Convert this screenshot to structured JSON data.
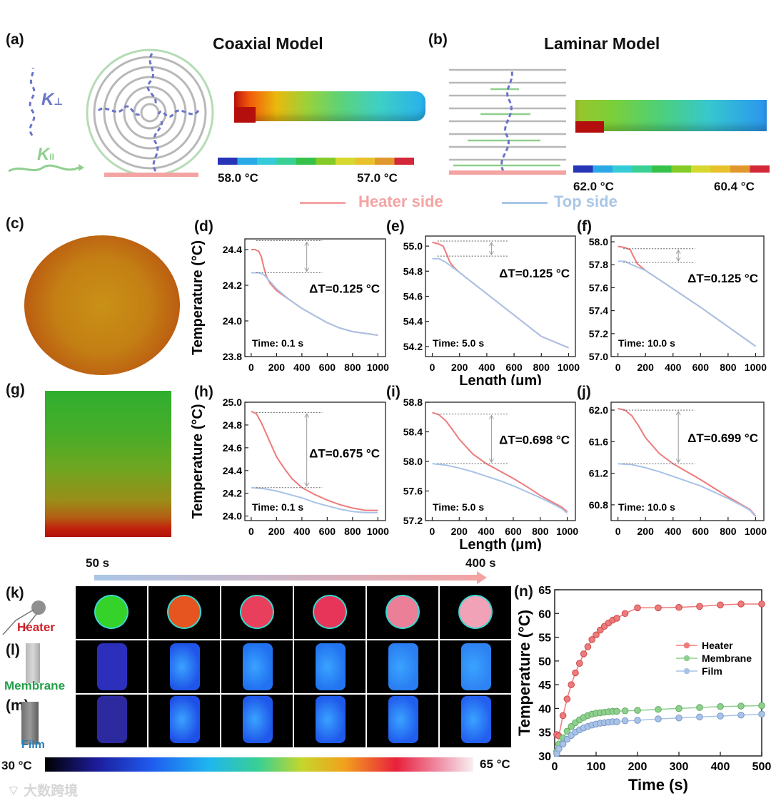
{
  "colors": {
    "heater": "#ee7b7b",
    "membrane": "#8fcf8f",
    "film": "#a9c3e8",
    "hs_legend": "#f4a3a3",
    "ts_legend": "#a9c6e6",
    "heater_label": "#d0202a",
    "membrane_label": "#22a04a",
    "film_label": "#2c7fb8"
  },
  "panels": {
    "a": {
      "label": "(a)",
      "title": "Coaxial Model",
      "k_perp": "K",
      "k_perp_sub": "⊥",
      "k_par": "K",
      "k_par_sub": "II",
      "cb_min": "58.0 °C",
      "cb_max": "57.0 °C"
    },
    "b": {
      "label": "(b)",
      "title": "Laminar Model",
      "cb_min": "62.0 °C",
      "cb_max": "60.4 °C"
    },
    "c": {
      "label": "(c)"
    },
    "g": {
      "label": "(g)"
    },
    "k": {
      "label": "(k)",
      "name": "Heater"
    },
    "l": {
      "label": "(l)",
      "name": "Membrane"
    },
    "m": {
      "label": "(m)",
      "name": "Film"
    },
    "n": {
      "label": "(n)"
    }
  },
  "legend_top": {
    "heater": "Heater side",
    "top": "Top side"
  },
  "thermal": {
    "start": "50 s",
    "end": "400 s",
    "cb_min": "30 °C",
    "cb_max": "65 °C"
  },
  "watermark": "大数跨境",
  "chart_data": [
    {
      "id": "d",
      "label": "(d)",
      "type": "line",
      "xlim": [
        -50,
        1060
      ],
      "ylim": [
        23.8,
        24.46
      ],
      "yticks": [
        23.8,
        24.0,
        24.2,
        24.4
      ],
      "ytick_labels": [
        "23.8",
        "24.0",
        "24.2",
        "24.4"
      ],
      "xticks": [
        0,
        200,
        400,
        600,
        800,
        1000
      ],
      "xtick_labels": [
        "0",
        "200",
        "400",
        "600",
        "800",
        "1000"
      ],
      "ylabel": "Temperature (°C)",
      "xlabel": "",
      "time": "Time: 0.1 s",
      "dt": "ΔT=0.125 °C",
      "dt_top": 24.45,
      "dt_bottom": 24.27,
      "series": [
        {
          "name": "Heater side",
          "x": [
            0,
            30,
            60,
            80,
            100,
            120,
            150,
            200,
            300,
            400,
            500,
            600,
            700,
            800,
            900,
            1000
          ],
          "y": [
            24.4,
            24.4,
            24.39,
            24.36,
            24.3,
            24.25,
            24.21,
            24.17,
            24.12,
            24.07,
            24.03,
            23.99,
            23.96,
            23.94,
            23.93,
            23.92
          ]
        },
        {
          "name": "Top side",
          "x": [
            0,
            30,
            60,
            100,
            150,
            200,
            300,
            400,
            500,
            600,
            700,
            800,
            900,
            1000
          ],
          "y": [
            24.27,
            24.27,
            24.27,
            24.26,
            24.22,
            24.18,
            24.12,
            24.07,
            24.03,
            23.99,
            23.96,
            23.94,
            23.93,
            23.92
          ]
        }
      ]
    },
    {
      "id": "e",
      "label": "(e)",
      "type": "line",
      "xlim": [
        -50,
        1050
      ],
      "ylim": [
        54.12,
        55.08
      ],
      "yticks": [
        54.2,
        54.4,
        54.6,
        54.8,
        55.0
      ],
      "ytick_labels": [
        "54.2",
        "54.4",
        "54.6",
        "54.8",
        "55.0"
      ],
      "xticks": [
        0,
        200,
        400,
        600,
        800,
        1000
      ],
      "xtick_labels": [
        "0",
        "200",
        "400",
        "600",
        "800",
        "1000"
      ],
      "ylabel": "",
      "xlabel": "Length (μm)",
      "time": "Time: 5.0 s",
      "dt": "ΔT=0.125 °C",
      "dt_top": 55.04,
      "dt_bottom": 54.92,
      "series": [
        {
          "name": "Heater side",
          "x": [
            0,
            40,
            80,
            100,
            130,
            160,
            200,
            400,
            600,
            800,
            1000
          ],
          "y": [
            55.03,
            55.02,
            55.0,
            54.95,
            54.87,
            54.83,
            54.79,
            54.62,
            54.45,
            54.28,
            54.19
          ]
        },
        {
          "name": "Top side",
          "x": [
            0,
            50,
            100,
            200,
            400,
            600,
            800,
            1000
          ],
          "y": [
            54.9,
            54.9,
            54.87,
            54.79,
            54.62,
            54.45,
            54.28,
            54.19
          ]
        }
      ]
    },
    {
      "id": "f",
      "label": "(f)",
      "type": "line",
      "xlim": [
        -50,
        1060
      ],
      "ylim": [
        57.0,
        58.05
      ],
      "yticks": [
        57.0,
        57.2,
        57.4,
        57.6,
        57.8,
        58.0
      ],
      "ytick_labels": [
        "57.0",
        "57.2",
        "57.4",
        "57.6",
        "57.8",
        "58.0"
      ],
      "xticks": [
        0,
        200,
        400,
        600,
        800,
        1000
      ],
      "xtick_labels": [
        "0",
        "200",
        "400",
        "600",
        "800",
        "1000"
      ],
      "ylabel": "",
      "xlabel": "",
      "time": "Time: 10.0 s",
      "dt": "ΔT=0.125 °C",
      "dt_top": 57.94,
      "dt_bottom": 57.82,
      "series": [
        {
          "name": "Heater side",
          "x": [
            0,
            50,
            90,
            110,
            140,
            170,
            200,
            400,
            600,
            800,
            1000
          ],
          "y": [
            57.96,
            57.95,
            57.93,
            57.88,
            57.81,
            57.78,
            57.75,
            57.59,
            57.43,
            57.26,
            57.09
          ]
        },
        {
          "name": "Top side",
          "x": [
            0,
            50,
            100,
            200,
            400,
            600,
            800,
            1000
          ],
          "y": [
            57.83,
            57.83,
            57.8,
            57.75,
            57.59,
            57.43,
            57.26,
            57.09
          ]
        }
      ]
    },
    {
      "id": "h",
      "label": "(h)",
      "type": "line",
      "xlim": [
        -50,
        1060
      ],
      "ylim": [
        23.96,
        25.0
      ],
      "yticks": [
        24.0,
        24.2,
        24.4,
        24.6,
        24.8,
        25.0
      ],
      "ytick_labels": [
        "24.0",
        "24.2",
        "24.4",
        "24.6",
        "24.8",
        "25.0"
      ],
      "xticks": [
        0,
        200,
        400,
        600,
        800,
        1000
      ],
      "xtick_labels": [
        "0",
        "200",
        "400",
        "600",
        "800",
        "1000"
      ],
      "ylabel": "Temperature (°C)",
      "xlabel": "",
      "time": "Time: 0.1 s",
      "dt": "ΔT=0.675 °C",
      "dt_top": 24.91,
      "dt_bottom": 24.25,
      "series": [
        {
          "name": "Heater side",
          "x": [
            0,
            40,
            80,
            120,
            160,
            200,
            260,
            320,
            400,
            500,
            600,
            700,
            800,
            900,
            1000
          ],
          "y": [
            24.92,
            24.9,
            24.82,
            24.72,
            24.62,
            24.52,
            24.42,
            24.33,
            24.25,
            24.19,
            24.14,
            24.1,
            24.07,
            24.05,
            24.05
          ]
        },
        {
          "name": "Top side",
          "x": [
            0,
            100,
            200,
            300,
            400,
            500,
            600,
            700,
            800,
            900,
            1000
          ],
          "y": [
            24.25,
            24.24,
            24.22,
            24.19,
            24.16,
            24.12,
            24.09,
            24.06,
            24.04,
            24.03,
            24.03
          ]
        }
      ]
    },
    {
      "id": "i",
      "label": "(i)",
      "type": "line",
      "xlim": [
        -50,
        1060
      ],
      "ylim": [
        57.2,
        58.8
      ],
      "yticks": [
        57.2,
        57.6,
        58.0,
        58.4,
        58.8
      ],
      "ytick_labels": [
        "57.2",
        "57.6",
        "58.0",
        "58.4",
        "58.8"
      ],
      "xticks": [
        0,
        200,
        400,
        600,
        800,
        1000
      ],
      "xtick_labels": [
        "0",
        "200",
        "400",
        "600",
        "800",
        "1000"
      ],
      "ylabel": "",
      "xlabel": "Length (μm)",
      "time": "Time: 5.0 s",
      "dt": "ΔT=0.698 °C",
      "dt_top": 58.64,
      "dt_bottom": 57.97,
      "series": [
        {
          "name": "Heater side",
          "x": [
            0,
            50,
            100,
            150,
            200,
            300,
            400,
            500,
            600,
            700,
            800,
            900,
            960,
            1000
          ],
          "y": [
            58.66,
            58.63,
            58.55,
            58.43,
            58.3,
            58.1,
            57.97,
            57.87,
            57.77,
            57.66,
            57.54,
            57.44,
            57.38,
            57.32
          ]
        },
        {
          "name": "Top side",
          "x": [
            0,
            100,
            200,
            300,
            400,
            500,
            600,
            700,
            800,
            900,
            960,
            1000
          ],
          "y": [
            57.97,
            57.95,
            57.91,
            57.86,
            57.8,
            57.74,
            57.67,
            57.59,
            57.51,
            57.42,
            57.36,
            57.3
          ]
        }
      ]
    },
    {
      "id": "j",
      "label": "(j)",
      "type": "line",
      "xlim": [
        -50,
        1060
      ],
      "ylim": [
        60.6,
        62.1
      ],
      "yticks": [
        60.8,
        61.2,
        61.6,
        62.0
      ],
      "ytick_labels": [
        "60.8",
        "61.2",
        "61.6",
        "62.0"
      ],
      "xticks": [
        0,
        200,
        400,
        600,
        800,
        1000
      ],
      "xtick_labels": [
        "0",
        "200",
        "400",
        "600",
        "800",
        "1000"
      ],
      "ylabel": "",
      "xlabel": "",
      "time": "Time: 10.0 s",
      "dt": "ΔT=0.699 °C",
      "dt_top": 62.0,
      "dt_bottom": 61.32,
      "series": [
        {
          "name": "Heater side",
          "x": [
            0,
            50,
            100,
            150,
            200,
            300,
            400,
            500,
            600,
            700,
            800,
            900,
            960,
            1000
          ],
          "y": [
            62.02,
            62.0,
            61.93,
            61.8,
            61.65,
            61.45,
            61.32,
            61.22,
            61.12,
            61.01,
            60.9,
            60.8,
            60.74,
            60.66
          ]
        },
        {
          "name": "Top side",
          "x": [
            0,
            100,
            200,
            300,
            400,
            500,
            600,
            700,
            800,
            900,
            960,
            1000
          ],
          "y": [
            61.32,
            61.31,
            61.27,
            61.22,
            61.16,
            61.1,
            61.04,
            60.96,
            60.88,
            60.79,
            60.73,
            60.65
          ]
        }
      ]
    },
    {
      "id": "n",
      "label": "(n)",
      "type": "scatter-line",
      "xlim": [
        0,
        500
      ],
      "ylim": [
        30,
        65
      ],
      "yticks": [
        30,
        35,
        40,
        45,
        50,
        55,
        60,
        65
      ],
      "ytick_labels": [
        "30",
        "35",
        "40",
        "45",
        "50",
        "55",
        "60",
        "65"
      ],
      "xticks": [
        0,
        100,
        200,
        300,
        400,
        500
      ],
      "xtick_labels": [
        "0",
        "100",
        "200",
        "300",
        "400",
        "500"
      ],
      "ylabel": "Temperature (°C)",
      "xlabel": "Time (s)",
      "series": [
        {
          "name": "Heater",
          "x": [
            5,
            10,
            20,
            30,
            40,
            50,
            60,
            70,
            80,
            90,
            100,
            110,
            120,
            130,
            140,
            150,
            170,
            200,
            250,
            300,
            350,
            400,
            450,
            500
          ],
          "y": [
            34.5,
            34.2,
            38.5,
            42.0,
            45.0,
            47.5,
            49.5,
            51.5,
            53.0,
            54.5,
            55.5,
            56.5,
            57.3,
            58.0,
            58.6,
            59.0,
            60.0,
            61.2,
            61.2,
            61.3,
            61.5,
            61.8,
            62.0,
            62.0
          ]
        },
        {
          "name": "Membrane",
          "x": [
            5,
            10,
            20,
            30,
            40,
            50,
            60,
            70,
            80,
            90,
            100,
            110,
            120,
            130,
            140,
            150,
            170,
            200,
            250,
            300,
            350,
            400,
            450,
            500
          ],
          "y": [
            31.0,
            32.5,
            33.8,
            35.2,
            36.2,
            37.0,
            37.6,
            38.1,
            38.5,
            38.8,
            39.0,
            39.1,
            39.2,
            39.3,
            39.4,
            39.4,
            39.5,
            39.6,
            39.8,
            40.0,
            40.2,
            40.4,
            40.5,
            40.6
          ]
        },
        {
          "name": "Film",
          "x": [
            5,
            10,
            20,
            30,
            40,
            50,
            60,
            70,
            80,
            90,
            100,
            110,
            120,
            130,
            140,
            150,
            170,
            200,
            250,
            300,
            350,
            400,
            450,
            500
          ],
          "y": [
            30.5,
            31.5,
            32.5,
            33.5,
            34.3,
            35.0,
            35.5,
            35.9,
            36.2,
            36.5,
            36.7,
            36.9,
            37.0,
            37.1,
            37.2,
            37.2,
            37.4,
            37.5,
            37.8,
            38.0,
            38.2,
            38.4,
            38.6,
            38.8
          ]
        }
      ]
    }
  ]
}
